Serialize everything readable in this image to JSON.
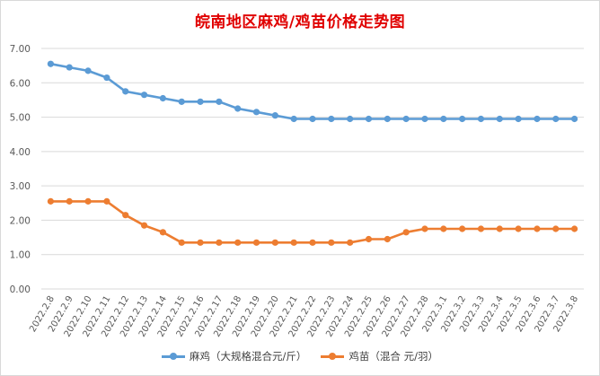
{
  "chart_data": {
    "type": "line",
    "title": "皖南地区麻鸡/鸡苗价格走势图",
    "categories": [
      "2022.2.8",
      "2022.2.9",
      "2022.2.10",
      "2022.2.11",
      "2022.2.12",
      "2022.2.13",
      "2022.2.14",
      "2022.2.15",
      "2022.2.16",
      "2022.2.17",
      "2022.2.18",
      "2022.2.19",
      "2022.2.20",
      "2022.2.21",
      "2022.2.22",
      "2022.2.23",
      "2022.2.24",
      "2022.2.25",
      "2022.2.26",
      "2022.2.27",
      "2022.2.28",
      "2022.3.1",
      "2022.3.2",
      "2022.3.3",
      "2022.3.4",
      "2022.3.5",
      "2022.3.6",
      "2022.3.7",
      "2022.3.8"
    ],
    "ylim": [
      0,
      7
    ],
    "yticks": [
      "0.00",
      "1.00",
      "2.00",
      "3.00",
      "4.00",
      "5.00",
      "6.00",
      "7.00"
    ],
    "grid": true,
    "legend_position": "bottom",
    "series": [
      {
        "name": "麻鸡（大规格混合元/斤）",
        "color": "#5b9bd5",
        "values": [
          6.55,
          6.45,
          6.35,
          6.15,
          5.75,
          5.65,
          5.55,
          5.45,
          5.45,
          5.45,
          5.25,
          5.15,
          5.05,
          4.95,
          4.95,
          4.95,
          4.95,
          4.95,
          4.95,
          4.95,
          4.95,
          4.95,
          4.95,
          4.95,
          4.95,
          4.95,
          4.95,
          4.95,
          4.95
        ]
      },
      {
        "name": "鸡苗（混合 元/羽）",
        "color": "#ed7d31",
        "values": [
          2.55,
          2.55,
          2.55,
          2.55,
          2.15,
          1.85,
          1.65,
          1.35,
          1.35,
          1.35,
          1.35,
          1.35,
          1.35,
          1.35,
          1.35,
          1.35,
          1.35,
          1.45,
          1.45,
          1.65,
          1.75,
          1.75,
          1.75,
          1.75,
          1.75,
          1.75,
          1.75,
          1.75,
          1.75
        ]
      }
    ]
  }
}
